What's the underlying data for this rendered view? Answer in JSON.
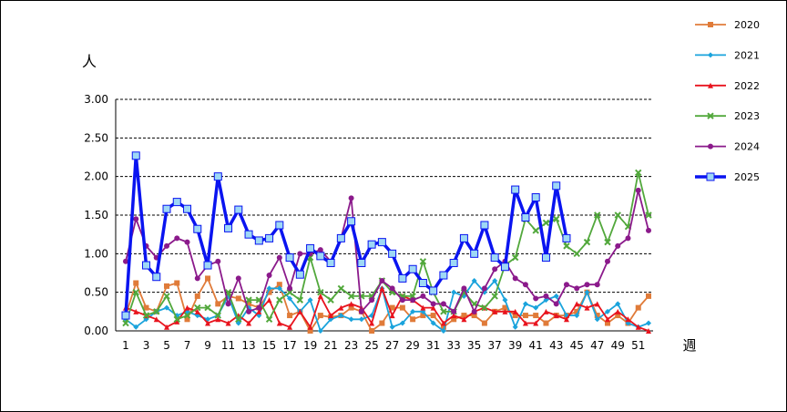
{
  "chart_data": {
    "type": "line",
    "ylabel": "人",
    "xlabel": "週",
    "ylim": [
      0,
      3
    ],
    "yticks": [
      "0.00",
      "0.50",
      "1.00",
      "1.50",
      "2.00",
      "2.50",
      "3.00"
    ],
    "xticks": [
      "1",
      "3",
      "5",
      "7",
      "9",
      "11",
      "13",
      "15",
      "17",
      "19",
      "21",
      "23",
      "25",
      "27",
      "29",
      "31",
      "33",
      "35",
      "37",
      "39",
      "41",
      "43",
      "45",
      "47",
      "49",
      "51"
    ],
    "legend_position": "right",
    "grid": "horizontal dashed",
    "series": [
      {
        "name": "2020",
        "color": "#E07B39",
        "marker": "square",
        "values": [
          0.2,
          0.62,
          0.3,
          0.25,
          0.58,
          0.62,
          0.15,
          0.45,
          0.68,
          0.35,
          0.45,
          0.42,
          0.35,
          0.3,
          0.5,
          0.6,
          0.2,
          0.25,
          0.0,
          0.2,
          0.18,
          0.2,
          0.3,
          0.25,
          0.0,
          0.1,
          0.3,
          0.3,
          0.15,
          0.2,
          0.2,
          0.05,
          0.15,
          0.2,
          0.2,
          0.1,
          0.25,
          0.3,
          0.2,
          0.2,
          0.2,
          0.1,
          0.2,
          0.2,
          0.25,
          0.5,
          0.2,
          0.1,
          0.2,
          0.1,
          0.3,
          0.45
        ]
      },
      {
        "name": "2021",
        "color": "#1AA3DC",
        "marker": "diamond",
        "values": [
          0.15,
          0.05,
          0.15,
          0.25,
          0.3,
          0.2,
          0.25,
          0.2,
          0.15,
          0.2,
          0.45,
          0.1,
          0.3,
          0.2,
          0.55,
          0.55,
          0.42,
          0.25,
          0.4,
          0.0,
          0.15,
          0.2,
          0.15,
          0.15,
          0.2,
          0.55,
          0.05,
          0.1,
          0.25,
          0.25,
          0.1,
          0.0,
          0.5,
          0.45,
          0.65,
          0.5,
          0.65,
          0.4,
          0.05,
          0.35,
          0.3,
          0.4,
          0.45,
          0.2,
          0.2,
          0.5,
          0.15,
          0.25,
          0.35,
          0.1,
          0.05,
          0.1
        ]
      },
      {
        "name": "2022",
        "color": "#E8141E",
        "marker": "triangle",
        "values": [
          0.3,
          0.25,
          0.2,
          0.15,
          0.05,
          0.12,
          0.3,
          0.25,
          0.1,
          0.15,
          0.1,
          0.2,
          0.1,
          0.25,
          0.4,
          0.1,
          0.05,
          0.25,
          0.05,
          0.45,
          0.2,
          0.3,
          0.35,
          0.3,
          0.1,
          0.55,
          0.2,
          0.45,
          0.4,
          0.3,
          0.3,
          0.1,
          0.2,
          0.15,
          0.25,
          0.3,
          0.25,
          0.25,
          0.25,
          0.1,
          0.1,
          0.25,
          0.2,
          0.15,
          0.35,
          0.3,
          0.35,
          0.15,
          0.25,
          0.15,
          0.05,
          0.0
        ]
      },
      {
        "name": "2023",
        "color": "#52A83C",
        "marker": "x",
        "values": [
          0.1,
          0.5,
          0.2,
          0.25,
          0.45,
          0.15,
          0.2,
          0.3,
          0.3,
          0.2,
          0.5,
          0.15,
          0.4,
          0.4,
          0.15,
          0.4,
          0.5,
          0.4,
          0.95,
          0.5,
          0.4,
          0.55,
          0.45,
          0.45,
          0.45,
          0.65,
          0.5,
          0.45,
          0.45,
          0.9,
          0.5,
          0.25,
          0.25,
          0.5,
          0.35,
          0.3,
          0.45,
          0.85,
          0.95,
          1.45,
          1.3,
          1.4,
          1.45,
          1.1,
          1.0,
          1.15,
          1.5,
          1.15,
          1.5,
          1.35,
          2.05,
          1.5
        ]
      },
      {
        "name": "2024",
        "color": "#8B1A8B",
        "marker": "circle",
        "values": [
          0.9,
          1.45,
          1.1,
          0.95,
          1.1,
          1.2,
          1.15,
          0.68,
          0.85,
          0.9,
          0.35,
          0.68,
          0.25,
          0.3,
          0.72,
          0.95,
          0.55,
          1.0,
          1.0,
          1.05,
          0.9,
          1.2,
          1.72,
          0.25,
          0.4,
          0.65,
          0.55,
          0.4,
          0.4,
          0.45,
          0.35,
          0.35,
          0.25,
          0.55,
          0.25,
          0.55,
          0.8,
          0.9,
          0.68,
          0.6,
          0.42,
          0.45,
          0.35,
          0.6,
          0.55,
          0.6,
          0.6,
          0.9,
          1.1,
          1.2,
          1.82,
          1.3
        ]
      },
      {
        "name": "2025",
        "color": "#0A14F0",
        "marker": "square-open",
        "values": [
          0.2,
          2.27,
          0.85,
          0.7,
          1.58,
          1.67,
          1.58,
          1.32,
          0.85,
          2.0,
          1.33,
          1.57,
          1.25,
          1.17,
          1.2,
          1.37,
          0.95,
          0.73,
          1.07,
          0.97,
          0.88,
          1.2,
          1.42,
          0.88,
          1.12,
          1.15,
          1.0,
          0.68,
          0.8,
          0.62,
          0.52,
          0.72,
          0.88,
          1.2,
          1.0,
          1.37,
          0.95,
          0.83,
          1.83,
          1.47,
          1.73,
          0.95,
          1.88,
          1.2
        ]
      }
    ]
  }
}
